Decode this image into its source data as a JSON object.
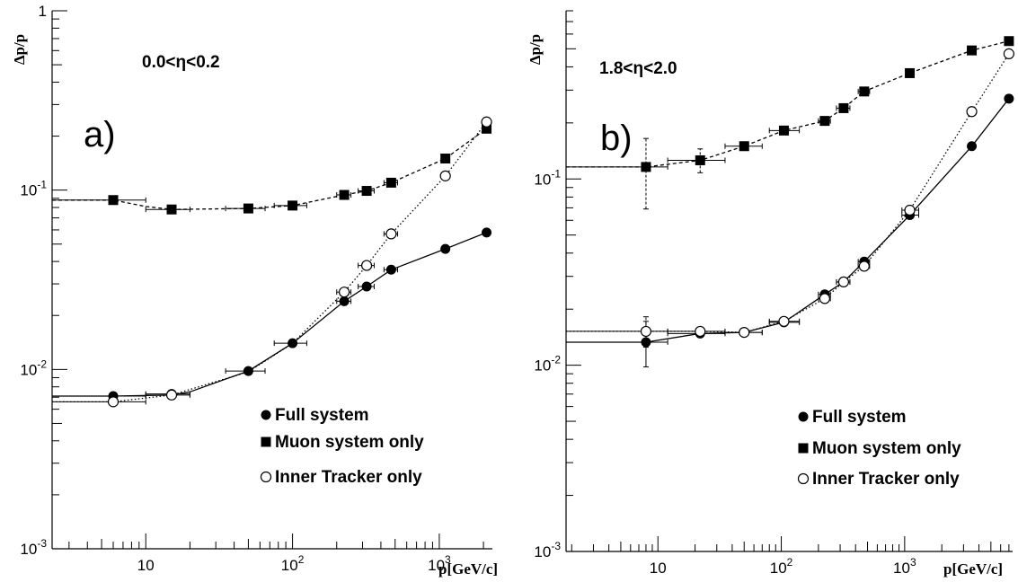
{
  "chart_data": [
    {
      "type": "scatter",
      "panel_label": "a)",
      "range_label": "0.0<η<0.2",
      "xlabel": "p[GeV/c]",
      "ylabel": "Δp/p",
      "xscale": "log",
      "yscale": "log",
      "xlim": [
        2.3,
        2300
      ],
      "ylim": [
        0.001,
        1
      ],
      "x_ticks": [
        {
          "value": 10,
          "mant": "10",
          "exp": ""
        },
        {
          "value": 100,
          "mant": "10",
          "exp": "2"
        },
        {
          "value": 1000,
          "mant": "10",
          "exp": "3"
        }
      ],
      "y_ticks": [
        {
          "value": 0.001,
          "mant": "10",
          "exp": "-3"
        },
        {
          "value": 0.01,
          "mant": "10",
          "exp": "-2"
        },
        {
          "value": 0.1,
          "mant": "10",
          "exp": "-1"
        },
        {
          "value": 1,
          "mant": "1",
          "exp": ""
        }
      ],
      "legend": {
        "placement": "bottom-right",
        "items": [
          {
            "label": "Full system",
            "marker": "filled-circle"
          },
          {
            "label": "Muon system only",
            "marker": "filled-square"
          },
          {
            "label": "Inner Tracker only",
            "marker": "open-circle"
          }
        ]
      },
      "series": [
        {
          "name": "Full system",
          "marker": "filled-circle",
          "line": "solid",
          "x": [
            6,
            15,
            50,
            100,
            225,
            320,
            470,
            1100,
            2100
          ],
          "y": [
            0.0071,
            0.0073,
            0.0098,
            0.014,
            0.024,
            0.029,
            0.036,
            0.047,
            0.058
          ],
          "x_low": [
            2.3,
            10,
            35,
            75,
            200,
            280,
            420,
            null,
            null
          ],
          "x_high": [
            10,
            20,
            65,
            125,
            250,
            360,
            520,
            null,
            null
          ],
          "line_x": [
            2.3,
            6,
            15,
            20,
            50,
            100,
            225,
            320,
            470,
            1100,
            2100
          ],
          "line_y": [
            0.0071,
            0.0071,
            0.0072,
            0.0075,
            0.0098,
            0.014,
            0.024,
            0.029,
            0.036,
            0.047,
            0.058
          ]
        },
        {
          "name": "Muon system only",
          "marker": "filled-square",
          "line": "dashed",
          "x": [
            6,
            15,
            50,
            100,
            225,
            320,
            470,
            1100,
            2100
          ],
          "y": [
            0.088,
            0.078,
            0.079,
            0.082,
            0.094,
            0.099,
            0.11,
            0.15,
            0.22
          ],
          "x_low": [
            2.3,
            10,
            35,
            75,
            200,
            280,
            420,
            null,
            null
          ],
          "x_high": [
            10,
            20,
            65,
            125,
            250,
            360,
            520,
            null,
            null
          ],
          "line_x": [
            2.3,
            6,
            10,
            15,
            50,
            100,
            225,
            320,
            470,
            1100,
            2100
          ],
          "line_y": [
            0.088,
            0.088,
            0.081,
            0.078,
            0.079,
            0.082,
            0.094,
            0.099,
            0.11,
            0.15,
            0.22
          ]
        },
        {
          "name": "Inner Tracker only",
          "marker": "open-circle",
          "line": "dotted",
          "x": [
            6,
            15,
            225,
            320,
            470,
            1100,
            2100
          ],
          "y": [
            0.0066,
            0.0072,
            0.027,
            0.038,
            0.057,
            0.12,
            0.24
          ],
          "x_low": [
            2.3,
            10,
            200,
            280,
            420,
            null,
            null
          ],
          "x_high": [
            10,
            20,
            250,
            360,
            520,
            null,
            null
          ],
          "line_x": [
            2.3,
            6,
            15,
            50,
            100,
            225,
            320,
            470,
            1100,
            2100
          ],
          "line_y": [
            0.0066,
            0.0066,
            0.0072,
            0.0097,
            0.014,
            0.027,
            0.038,
            0.057,
            0.12,
            0.24
          ]
        }
      ]
    },
    {
      "type": "scatter",
      "panel_label": "b)",
      "range_label": "1.8<η<2.0",
      "xlabel": "p[GeV/c]",
      "ylabel": "Δp/p",
      "xscale": "log",
      "yscale": "log",
      "xlim": [
        1.8,
        7500
      ],
      "ylim": [
        0.001,
        0.8
      ],
      "x_ticks": [
        {
          "value": 10,
          "mant": "10",
          "exp": ""
        },
        {
          "value": 100,
          "mant": "10",
          "exp": "2"
        },
        {
          "value": 1000,
          "mant": "10",
          "exp": "3"
        }
      ],
      "y_ticks": [
        {
          "value": 0.001,
          "mant": "10",
          "exp": "-3"
        },
        {
          "value": 0.01,
          "mant": "10",
          "exp": "-2"
        },
        {
          "value": 0.1,
          "mant": "10",
          "exp": "-1"
        }
      ],
      "legend": {
        "placement": "bottom-right",
        "items": [
          {
            "label": "Full system",
            "marker": "filled-circle"
          },
          {
            "label": "Muon system only",
            "marker": "filled-square"
          },
          {
            "label": "Inner Tracker only",
            "marker": "open-circle"
          }
        ]
      },
      "series": [
        {
          "name": "Full system",
          "marker": "filled-circle",
          "line": "solid",
          "x": [
            8,
            22,
            50,
            105,
            225,
            320,
            470,
            1100,
            3500,
            7000
          ],
          "y": [
            0.0133,
            0.0148,
            0.015,
            0.017,
            0.024,
            0.028,
            0.036,
            0.064,
            0.15,
            0.27
          ],
          "x_low": [
            1.8,
            12,
            35,
            80,
            200,
            280,
            420,
            950,
            null,
            null
          ],
          "x_high": [
            12,
            35,
            70,
            140,
            250,
            360,
            520,
            1300,
            null,
            null
          ],
          "y_low": [
            0.0098,
            null,
            null,
            null,
            null,
            null,
            null,
            null,
            null,
            null
          ],
          "y_high": [
            0.0172,
            null,
            null,
            null,
            null,
            null,
            null,
            null,
            null,
            null
          ],
          "line_x": [
            1.8,
            8,
            22,
            50,
            105,
            225,
            320,
            470,
            1100,
            3500,
            7000
          ],
          "line_y": [
            0.0133,
            0.0133,
            0.0148,
            0.015,
            0.017,
            0.024,
            0.028,
            0.036,
            0.064,
            0.15,
            0.27
          ]
        },
        {
          "name": "Muon system only",
          "marker": "filled-square",
          "line": "dashed",
          "x": [
            8,
            22,
            50,
            105,
            225,
            320,
            470,
            1100,
            3500,
            7000
          ],
          "y": [
            0.116,
            0.126,
            0.15,
            0.182,
            0.205,
            0.24,
            0.295,
            0.37,
            0.49,
            0.55
          ],
          "x_low": [
            1.8,
            12,
            35,
            80,
            200,
            280,
            420,
            null,
            null,
            null
          ],
          "x_high": [
            12,
            35,
            70,
            140,
            250,
            360,
            520,
            null,
            null,
            null
          ],
          "y_low": [
            0.069,
            0.108,
            null,
            null,
            null,
            null,
            null,
            null,
            null,
            null
          ],
          "y_high": [
            0.165,
            0.145,
            null,
            null,
            null,
            null,
            null,
            null,
            null,
            null
          ],
          "line_x": [
            1.8,
            8,
            22,
            50,
            105,
            225,
            320,
            470,
            1100,
            3500,
            7000
          ],
          "line_y": [
            0.116,
            0.116,
            0.126,
            0.15,
            0.182,
            0.205,
            0.24,
            0.295,
            0.37,
            0.49,
            0.55
          ]
        },
        {
          "name": "Inner Tracker only",
          "marker": "open-circle",
          "line": "dotted",
          "x": [
            8,
            22,
            50,
            105,
            225,
            320,
            470,
            1100,
            3500,
            7000
          ],
          "y": [
            0.0152,
            0.0152,
            0.015,
            0.0172,
            0.0228,
            0.028,
            0.034,
            0.068,
            0.23,
            0.47
          ],
          "x_low": [
            1.8,
            12,
            35,
            80,
            200,
            280,
            420,
            950,
            null,
            null
          ],
          "x_high": [
            12,
            35,
            70,
            140,
            250,
            360,
            520,
            1300,
            null,
            null
          ],
          "y_low": [
            0.0125,
            null,
            null,
            null,
            null,
            null,
            null,
            null,
            null,
            null
          ],
          "y_high": [
            0.0182,
            null,
            null,
            null,
            null,
            null,
            null,
            null,
            null,
            null
          ],
          "line_x": [
            1.8,
            8,
            22,
            50,
            105,
            225,
            320,
            470,
            1100,
            3500,
            7000
          ],
          "line_y": [
            0.0152,
            0.0152,
            0.0152,
            0.015,
            0.0172,
            0.0228,
            0.028,
            0.034,
            0.068,
            0.23,
            0.47
          ]
        }
      ]
    }
  ]
}
